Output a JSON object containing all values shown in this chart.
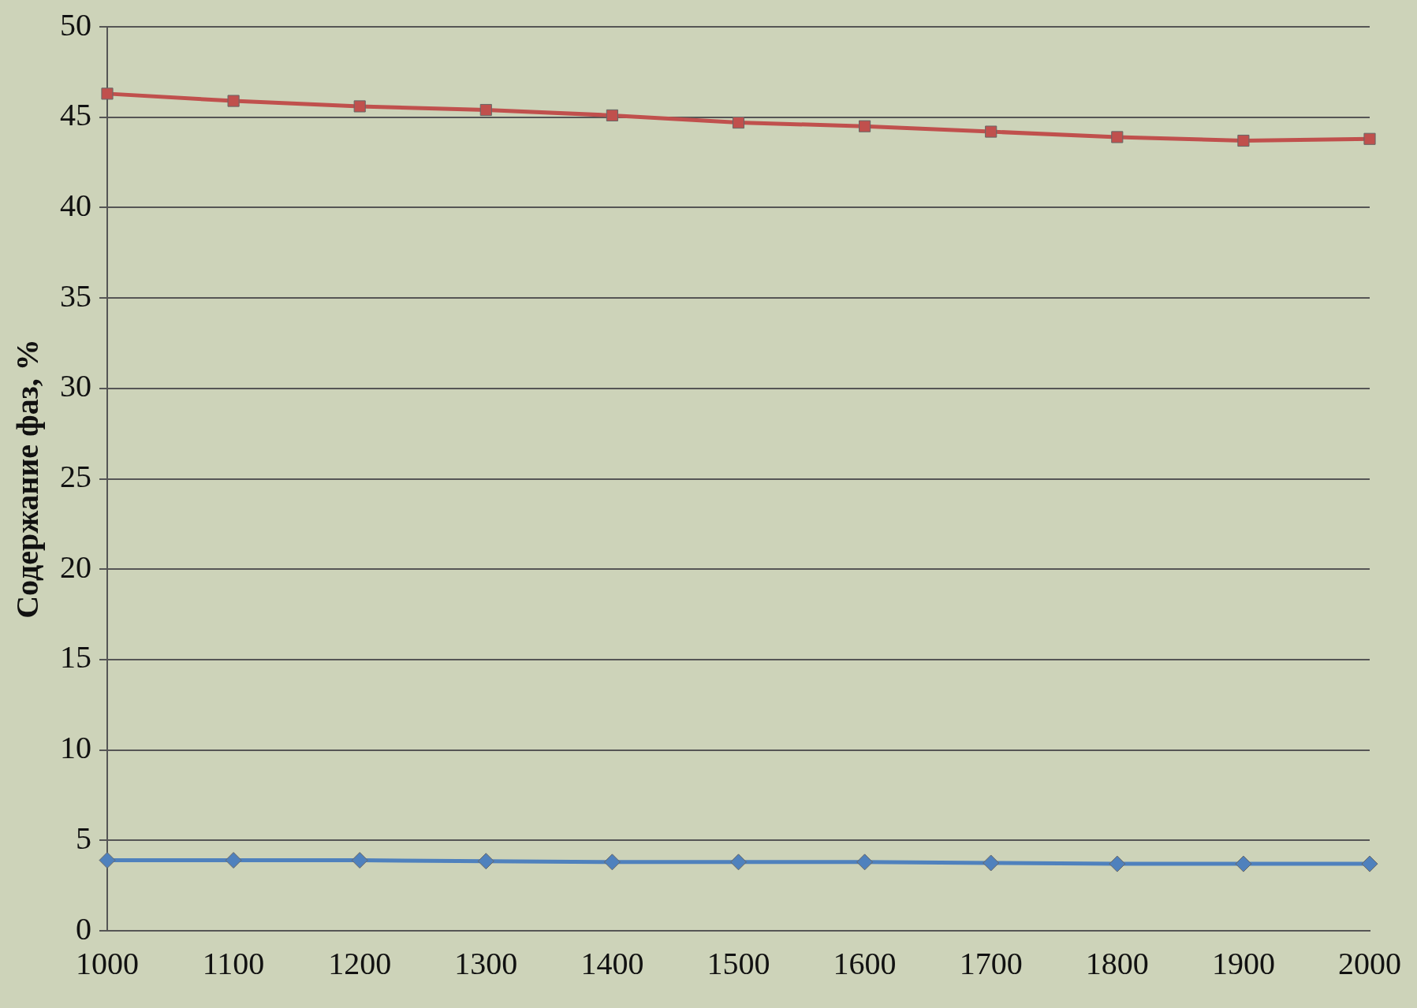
{
  "chart_data": {
    "type": "line",
    "ylabel": "Содержание фаз, %",
    "categories": [
      "1000",
      "1100",
      "1200",
      "1300",
      "1400",
      "1500",
      "1600",
      "1700",
      "1800",
      "1900",
      "2000"
    ],
    "series": [
      {
        "color": "#c0504d",
        "marker": "square",
        "values": [
          46.3,
          45.9,
          45.6,
          45.4,
          45.1,
          44.7,
          44.5,
          44.2,
          43.9,
          43.7,
          43.8
        ]
      },
      {
        "color": "#4f81bd",
        "marker": "diamond",
        "values": [
          3.9,
          3.9,
          3.9,
          3.85,
          3.8,
          3.8,
          3.8,
          3.75,
          3.7,
          3.7,
          3.7
        ]
      }
    ],
    "ylim": [
      0,
      50
    ],
    "yticks": [
      0,
      5,
      10,
      15,
      20,
      25,
      30,
      35,
      40,
      45,
      50
    ],
    "grid": "y",
    "legend": false,
    "line_style": "solid"
  }
}
